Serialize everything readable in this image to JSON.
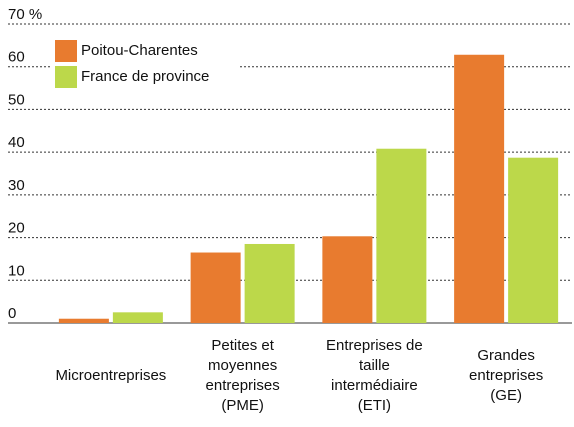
{
  "chart_data": {
    "type": "bar",
    "categories": [
      "Microentreprises",
      "Petites et\nmoyennes\nentreprises\n(PME)",
      "Entreprises de\ntaille\nintermédiaire\n(ETI)",
      "Grandes\nentreprises\n(GE)"
    ],
    "series": [
      {
        "name": "Poitou-Charentes",
        "color": "#e87b2f",
        "values": [
          1,
          16.5,
          20.3,
          62.8
        ]
      },
      {
        "name": "France de province",
        "color": "#bcd84a",
        "values": [
          2.5,
          18.5,
          40.8,
          38.7
        ]
      }
    ],
    "ylim": [
      0,
      70
    ],
    "yticks": [
      0,
      10,
      20,
      30,
      40,
      50,
      60,
      {
        "value": 70,
        "label": "70 %"
      }
    ],
    "grid": true,
    "legend": "top-left"
  }
}
